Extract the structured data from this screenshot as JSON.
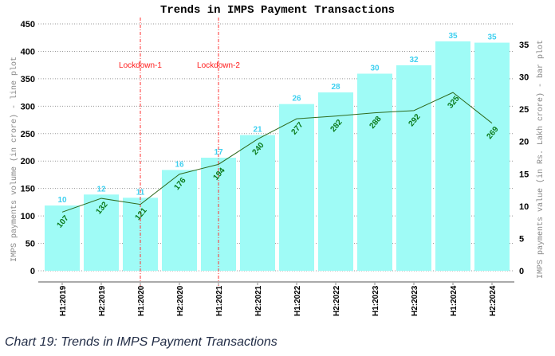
{
  "chart_data": {
    "type": "bar+line",
    "title": "Trends in IMPS Payment Transactions",
    "categories": [
      "H1:2019",
      "H2:2019",
      "H1:2020",
      "H2:2020",
      "H1:2021",
      "H2:2021",
      "H1:2022",
      "H2:2022",
      "H1:2023",
      "H2:2023",
      "H1:2024",
      "H2:2024"
    ],
    "bar_series": {
      "name": "IMPS payments value (in Rs. Lakh crore)",
      "values": [
        10.1,
        11.8,
        11.3,
        15.6,
        17.5,
        21.0,
        25.8,
        27.6,
        30.5,
        31.8,
        35.5,
        35.3
      ],
      "labels": [
        "10",
        "12",
        "11",
        "16",
        "17",
        "21",
        "26",
        "28",
        "30",
        "32",
        "35",
        "35"
      ],
      "color": "#9ffbf6"
    },
    "line_series": {
      "name": "IMPS payments volume (in crore)",
      "values": [
        107,
        132,
        121,
        176,
        194,
        240,
        277,
        282,
        288,
        292,
        325,
        269
      ],
      "labels": [
        "107",
        "132",
        "121",
        "176",
        "194",
        "240",
        "277",
        "282",
        "288",
        "292",
        "325",
        "269"
      ],
      "color": "#2e6b1e"
    },
    "ylabel_left": "IMPS payments volume (in crore) - line plot",
    "ylabel_right": "IMPS payments value (in Rs. Lakh crore) - bar plot",
    "ylim_left": [
      0,
      450
    ],
    "ylim_right": [
      0,
      38.2
    ],
    "yticks_left": [
      "0",
      "50",
      "100",
      "150",
      "200",
      "250",
      "300",
      "350",
      "400",
      "450"
    ],
    "yticks_right": [
      "0",
      "5",
      "10",
      "15",
      "20",
      "25",
      "30",
      "35"
    ],
    "annotations": [
      {
        "text": "Lockdown-1",
        "category": "H1:2020"
      },
      {
        "text": "Lockdown-2",
        "category": "H1:2021"
      }
    ],
    "grid": true
  },
  "caption": "Chart 19: Trends in IMPS Payment Transactions"
}
